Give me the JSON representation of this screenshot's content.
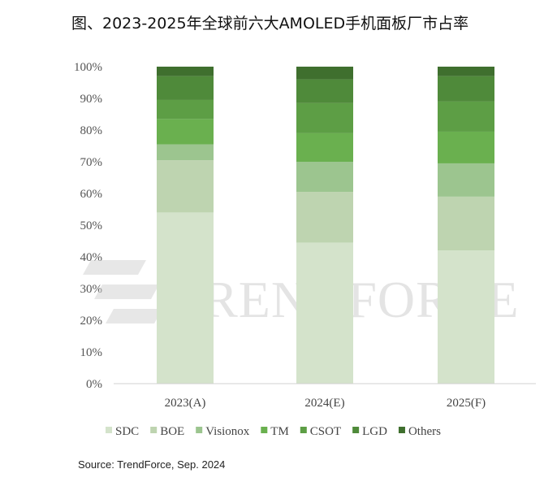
{
  "chart_data": {
    "type": "bar",
    "stacked": true,
    "percent": true,
    "title": "图、2023-2025年全球前六大AMOLED手机面板厂市占率",
    "categories": [
      "2023(A)",
      "2024(E)",
      "2025(F)"
    ],
    "ylim": [
      0,
      100
    ],
    "yticks": [
      "0%",
      "10%",
      "20%",
      "30%",
      "40%",
      "50%",
      "60%",
      "70%",
      "80%",
      "90%",
      "100%"
    ],
    "legend_position": "bottom",
    "grid": false,
    "series": [
      {
        "name": "SDC",
        "color": "#d4e3cb",
        "values": [
          54,
          44.5,
          42
        ]
      },
      {
        "name": "BOE",
        "color": "#bed4b0",
        "values": [
          16.5,
          16,
          17
        ]
      },
      {
        "name": "Visionox",
        "color": "#9cc58f",
        "values": [
          5,
          9.5,
          10.5
        ]
      },
      {
        "name": "TM",
        "color": "#6ab04f",
        "values": [
          8,
          9,
          10
        ]
      },
      {
        "name": "CSOT",
        "color": "#5d9e45",
        "values": [
          6,
          9.5,
          9.5
        ]
      },
      {
        "name": "LGD",
        "color": "#4f8a3a",
        "values": [
          7.5,
          7.5,
          8
        ]
      },
      {
        "name": "Others",
        "color": "#3f6f2e",
        "values": [
          3,
          4,
          3
        ]
      }
    ],
    "source": "Source: TrendForce, Sep. 2024",
    "watermark": "TRENDFORCE"
  }
}
